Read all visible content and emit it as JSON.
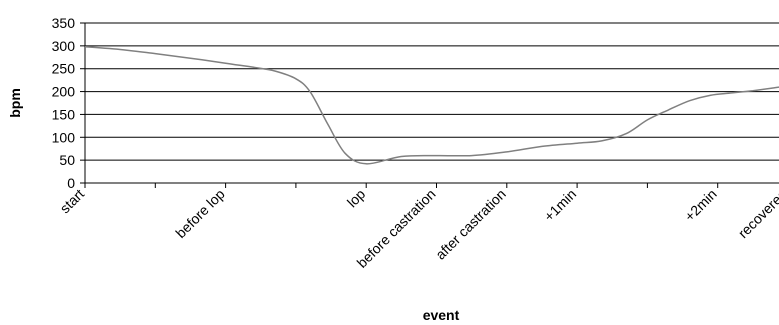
{
  "chart_data": {
    "type": "line",
    "title": "",
    "xlabel": "event",
    "ylabel": "bpm",
    "ylim": [
      0,
      350
    ],
    "yticks": [
      0,
      50,
      100,
      150,
      200,
      250,
      300,
      350
    ],
    "grid": true,
    "legend": "none",
    "line_color": "#808080",
    "grid_color": "#000000",
    "categories": [
      "start",
      "before lop",
      "lop",
      "before castration",
      "after castration",
      "+1min",
      "+2min",
      "recovered"
    ],
    "series": [
      {
        "x": [
          0,
          0.5,
          1.0,
          1.5,
          2.0,
          2.4,
          2.7,
          3.0,
          3.2,
          3.45,
          3.7,
          4.0,
          4.5,
          5.0,
          5.5,
          6.0,
          6.5,
          7.0,
          7.35,
          7.7,
          8.0,
          8.3,
          8.6,
          8.9,
          9.2,
          9.5,
          9.8,
          10.1,
          10.45,
          10.8
        ],
        "y": [
          298,
          292,
          283,
          273,
          262,
          253,
          245,
          228,
          200,
          130,
          65,
          42,
          58,
          60,
          60,
          68,
          80,
          87,
          92,
          108,
          138,
          160,
          180,
          192,
          197,
          202,
          208,
          215,
          222,
          230
        ]
      }
    ]
  }
}
